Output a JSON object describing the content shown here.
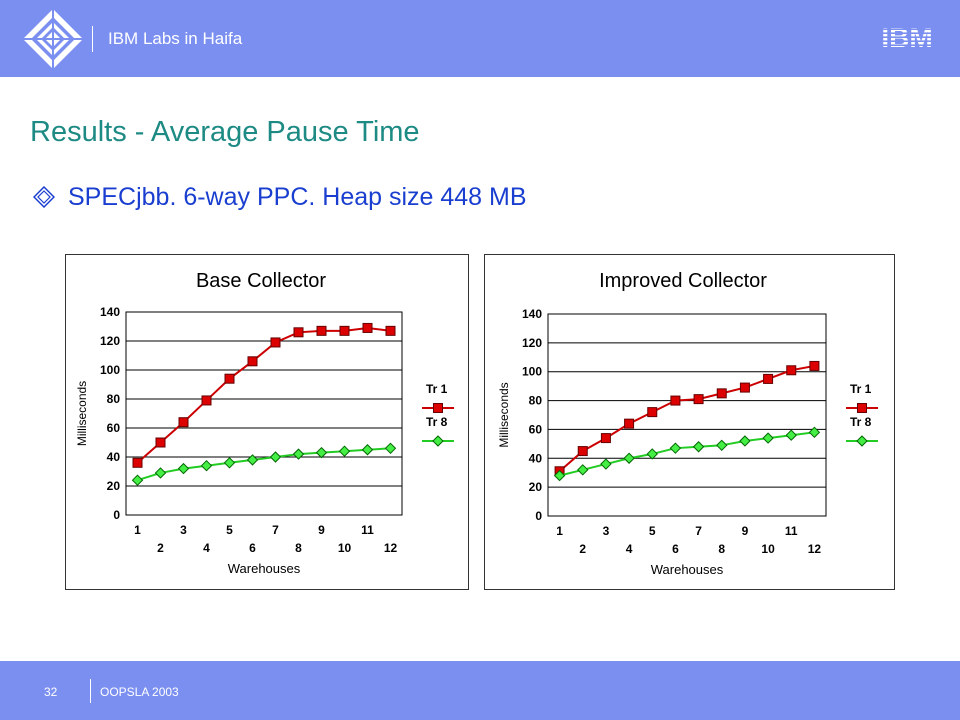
{
  "header": {
    "title": "IBM Labs in Haifa",
    "logo_text": "IBM"
  },
  "slide": {
    "title": "Results - Average Pause Time",
    "bullet": "SPECjbb. 6-way PPC. Heap size 448 MB"
  },
  "footer": {
    "page_number": "32",
    "text": "OOPSLA 2003"
  },
  "colors": {
    "header_bg": "#7b8ff0",
    "title": "#1e8a84",
    "bullet": "#1a3fd0",
    "tr1_line": "#cc0000",
    "tr1_marker": "#dd0000",
    "tr8_line": "#22cc22",
    "tr8_marker": "#44ee44"
  },
  "chart_data": [
    {
      "type": "line",
      "title": "Base Collector",
      "xlabel": "Warehouses",
      "ylabel": "Milliseconds",
      "x": [
        1,
        2,
        3,
        4,
        5,
        6,
        7,
        8,
        9,
        10,
        11,
        12
      ],
      "y_ticks": [
        0,
        20,
        40,
        60,
        80,
        100,
        120,
        140
      ],
      "ylim": [
        0,
        140
      ],
      "grid": true,
      "legend_position": "right",
      "series": [
        {
          "name": "Tr 1",
          "color": "#cc0000",
          "marker": "square",
          "values": [
            36,
            50,
            64,
            79,
            94,
            106,
            119,
            126,
            127,
            127,
            129,
            127
          ]
        },
        {
          "name": "Tr 8",
          "color": "#22cc22",
          "marker": "diamond",
          "values": [
            24,
            29,
            32,
            34,
            36,
            38,
            40,
            42,
            43,
            44,
            45,
            46
          ]
        }
      ]
    },
    {
      "type": "line",
      "title": "Improved Collector",
      "xlabel": "Warehouses",
      "ylabel": "Milliseconds",
      "x": [
        1,
        2,
        3,
        4,
        5,
        6,
        7,
        8,
        9,
        10,
        11,
        12
      ],
      "y_ticks": [
        0,
        20,
        40,
        60,
        80,
        100,
        120,
        140
      ],
      "ylim": [
        0,
        140
      ],
      "grid": true,
      "legend_position": "right",
      "series": [
        {
          "name": "Tr 1",
          "color": "#cc0000",
          "marker": "square",
          "values": [
            31,
            45,
            54,
            64,
            72,
            80,
            81,
            85,
            89,
            95,
            101,
            104
          ]
        },
        {
          "name": "Tr 8",
          "color": "#22cc22",
          "marker": "diamond",
          "values": [
            28,
            32,
            36,
            40,
            43,
            47,
            48,
            49,
            52,
            54,
            56,
            58
          ]
        }
      ]
    }
  ]
}
